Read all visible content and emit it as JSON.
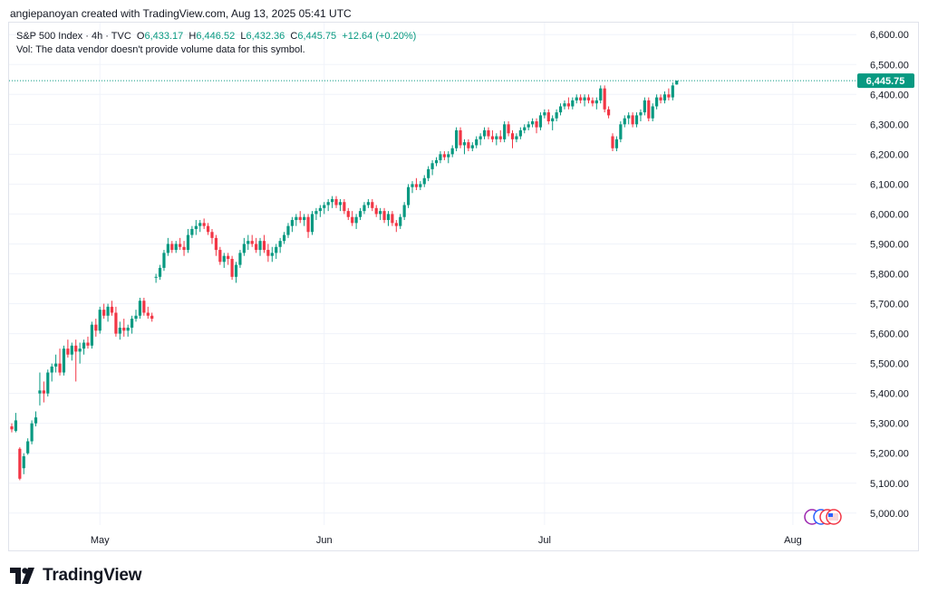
{
  "header": {
    "text": "angiepanoyan created with TradingView.com, Aug 13, 2025 05:41 UTC"
  },
  "legend": {
    "symbol": "S&P 500 Index · 4h · TVC",
    "o_label": "O",
    "o_value": "6,433.17",
    "h_label": "H",
    "h_value": "6,446.52",
    "l_label": "L",
    "l_value": "6,432.36",
    "c_label": "C",
    "c_value": "6,445.75",
    "change": "+12.64 (+0.20%)",
    "vol_note": "Vol: The data vendor doesn't provide volume data for this symbol."
  },
  "footer": {
    "brand": "TradingView"
  },
  "colors": {
    "up": "#089981",
    "down": "#f23645",
    "grid": "#f0f3fa",
    "text": "#131722",
    "price_label_bg": "#089981"
  },
  "chart_data": {
    "type": "candlestick",
    "title": "S&P 500 Index · 4h · TVC",
    "ylim": [
      4960,
      6640
    ],
    "y_ticks": [
      "6,600.00",
      "6,500.00",
      "6,400.00",
      "6,300.00",
      "6,200.00",
      "6,100.00",
      "6,000.00",
      "5,900.00",
      "5,800.00",
      "5,700.00",
      "5,600.00",
      "5,500.00",
      "5,400.00",
      "5,300.00",
      "5,200.00",
      "5,100.00",
      "5,000.00"
    ],
    "y_tick_values": [
      6600,
      6500,
      6400,
      6300,
      6200,
      6100,
      6000,
      5900,
      5800,
      5700,
      5600,
      5500,
      5400,
      5300,
      5200,
      5100,
      5000
    ],
    "x_ticks": [
      {
        "label": "May",
        "index": 22
      },
      {
        "label": "Jun",
        "index": 78
      },
      {
        "label": "Jul",
        "index": 133
      },
      {
        "label": "Aug",
        "index": 195
      }
    ],
    "last_price": {
      "value": 6445.75,
      "label": "6,445.75"
    },
    "candles": [
      [
        5290,
        5300,
        5270,
        5280
      ],
      [
        5275,
        5335,
        5270,
        5310
      ],
      [
        5215,
        5220,
        5110,
        5115
      ],
      [
        5150,
        5200,
        5130,
        5190
      ],
      [
        5200,
        5250,
        5195,
        5240
      ],
      [
        5240,
        5310,
        5230,
        5300
      ],
      [
        5300,
        5340,
        5290,
        5320
      ],
      [
        5400,
        5470,
        5360,
        5410
      ],
      [
        5410,
        5440,
        5370,
        5400
      ],
      [
        5400,
        5480,
        5390,
        5470
      ],
      [
        5470,
        5500,
        5440,
        5490
      ],
      [
        5490,
        5530,
        5470,
        5500
      ],
      [
        5500,
        5550,
        5460,
        5470
      ],
      [
        5470,
        5560,
        5460,
        5550
      ],
      [
        5550,
        5580,
        5520,
        5530
      ],
      [
        5530,
        5570,
        5510,
        5560
      ],
      [
        5560,
        5580,
        5440,
        5540
      ],
      [
        5540,
        5570,
        5500,
        5550
      ],
      [
        5550,
        5580,
        5530,
        5570
      ],
      [
        5570,
        5590,
        5550,
        5560
      ],
      [
        5560,
        5640,
        5550,
        5630
      ],
      [
        5630,
        5650,
        5590,
        5610
      ],
      [
        5610,
        5690,
        5600,
        5680
      ],
      [
        5680,
        5700,
        5650,
        5660
      ],
      [
        5660,
        5700,
        5640,
        5690
      ],
      [
        5690,
        5710,
        5660,
        5670
      ],
      [
        5670,
        5690,
        5590,
        5600
      ],
      [
        5600,
        5640,
        5580,
        5620
      ],
      [
        5620,
        5650,
        5590,
        5610
      ],
      [
        5610,
        5630,
        5590,
        5620
      ],
      [
        5620,
        5660,
        5600,
        5650
      ],
      [
        5650,
        5680,
        5640,
        5660
      ],
      [
        5660,
        5720,
        5650,
        5710
      ],
      [
        5710,
        5720,
        5660,
        5670
      ],
      [
        5670,
        5690,
        5650,
        5660
      ],
      [
        5660,
        5670,
        5640,
        5650
      ],
      [
        5790,
        5800,
        5770,
        5790
      ],
      [
        5790,
        5830,
        5780,
        5820
      ],
      [
        5820,
        5880,
        5810,
        5870
      ],
      [
        5870,
        5920,
        5860,
        5900
      ],
      [
        5900,
        5910,
        5870,
        5880
      ],
      [
        5880,
        5910,
        5870,
        5900
      ],
      [
        5900,
        5920,
        5880,
        5890
      ],
      [
        5890,
        5910,
        5860,
        5880
      ],
      [
        5880,
        5950,
        5870,
        5930
      ],
      [
        5930,
        5960,
        5920,
        5950
      ],
      [
        5950,
        5980,
        5930,
        5960
      ],
      [
        5960,
        5980,
        5940,
        5970
      ],
      [
        5970,
        5985,
        5950,
        5960
      ],
      [
        5960,
        5970,
        5930,
        5940
      ],
      [
        5940,
        5950,
        5900,
        5920
      ],
      [
        5920,
        5930,
        5860,
        5880
      ],
      [
        5880,
        5890,
        5830,
        5840
      ],
      [
        5840,
        5870,
        5820,
        5860
      ],
      [
        5860,
        5870,
        5830,
        5850
      ],
      [
        5850,
        5860,
        5780,
        5790
      ],
      [
        5790,
        5840,
        5770,
        5830
      ],
      [
        5830,
        5880,
        5820,
        5870
      ],
      [
        5870,
        5920,
        5860,
        5900
      ],
      [
        5900,
        5930,
        5880,
        5910
      ],
      [
        5910,
        5930,
        5890,
        5900
      ],
      [
        5900,
        5920,
        5870,
        5880
      ],
      [
        5880,
        5920,
        5860,
        5910
      ],
      [
        5910,
        5930,
        5870,
        5880
      ],
      [
        5880,
        5900,
        5840,
        5860
      ],
      [
        5860,
        5890,
        5840,
        5870
      ],
      [
        5870,
        5900,
        5850,
        5890
      ],
      [
        5890,
        5920,
        5870,
        5910
      ],
      [
        5910,
        5940,
        5900,
        5930
      ],
      [
        5930,
        5970,
        5920,
        5960
      ],
      [
        5960,
        5990,
        5940,
        5980
      ],
      [
        5980,
        6000,
        5960,
        5990
      ],
      [
        5990,
        6010,
        5970,
        5980
      ],
      [
        5980,
        6000,
        5960,
        5990
      ],
      [
        5990,
        6000,
        5920,
        5940
      ],
      [
        5940,
        6010,
        5930,
        6000
      ],
      [
        6000,
        6020,
        5980,
        6010
      ],
      [
        6010,
        6030,
        5990,
        6020
      ],
      [
        6020,
        6040,
        6000,
        6030
      ],
      [
        6030,
        6050,
        6010,
        6040
      ],
      [
        6040,
        6060,
        6020,
        6050
      ],
      [
        6050,
        6060,
        6020,
        6030
      ],
      [
        6030,
        6050,
        6010,
        6040
      ],
      [
        6040,
        6050,
        6000,
        6010
      ],
      [
        6010,
        6020,
        5980,
        5990
      ],
      [
        5990,
        6010,
        5960,
        5970
      ],
      [
        5970,
        6000,
        5950,
        5990
      ],
      [
        5990,
        6020,
        5980,
        6010
      ],
      [
        6010,
        6040,
        6000,
        6030
      ],
      [
        6030,
        6050,
        6020,
        6040
      ],
      [
        6040,
        6050,
        6010,
        6020
      ],
      [
        6020,
        6030,
        5990,
        6000
      ],
      [
        6000,
        6020,
        5980,
        6010
      ],
      [
        6010,
        6020,
        5970,
        5980
      ],
      [
        5980,
        6010,
        5960,
        6000
      ],
      [
        6000,
        6010,
        5960,
        5970
      ],
      [
        5970,
        5980,
        5940,
        5960
      ],
      [
        5960,
        6000,
        5950,
        5990
      ],
      [
        5990,
        6040,
        5980,
        6030
      ],
      [
        6030,
        6100,
        6020,
        6090
      ],
      [
        6090,
        6110,
        6070,
        6100
      ],
      [
        6100,
        6120,
        6080,
        6090
      ],
      [
        6090,
        6110,
        6080,
        6100
      ],
      [
        6100,
        6130,
        6090,
        6120
      ],
      [
        6120,
        6160,
        6110,
        6150
      ],
      [
        6150,
        6180,
        6130,
        6170
      ],
      [
        6170,
        6190,
        6160,
        6180
      ],
      [
        6180,
        6210,
        6170,
        6200
      ],
      [
        6200,
        6210,
        6180,
        6190
      ],
      [
        6190,
        6210,
        6170,
        6200
      ],
      [
        6200,
        6230,
        6190,
        6220
      ],
      [
        6220,
        6290,
        6210,
        6280
      ],
      [
        6280,
        6290,
        6220,
        6230
      ],
      [
        6230,
        6250,
        6200,
        6240
      ],
      [
        6240,
        6250,
        6210,
        6220
      ],
      [
        6220,
        6240,
        6210,
        6230
      ],
      [
        6230,
        6260,
        6220,
        6250
      ],
      [
        6250,
        6270,
        6230,
        6260
      ],
      [
        6260,
        6290,
        6250,
        6280
      ],
      [
        6280,
        6290,
        6250,
        6260
      ],
      [
        6260,
        6280,
        6240,
        6250
      ],
      [
        6250,
        6270,
        6230,
        6260
      ],
      [
        6260,
        6280,
        6240,
        6250
      ],
      [
        6250,
        6310,
        6240,
        6300
      ],
      [
        6300,
        6310,
        6260,
        6270
      ],
      [
        6270,
        6280,
        6220,
        6250
      ],
      [
        6250,
        6270,
        6240,
        6260
      ],
      [
        6260,
        6290,
        6250,
        6280
      ],
      [
        6280,
        6300,
        6270,
        6290
      ],
      [
        6290,
        6310,
        6280,
        6300
      ],
      [
        6300,
        6320,
        6290,
        6310
      ],
      [
        6310,
        6320,
        6270,
        6290
      ],
      [
        6290,
        6340,
        6280,
        6330
      ],
      [
        6330,
        6350,
        6320,
        6340
      ],
      [
        6340,
        6350,
        6300,
        6310
      ],
      [
        6310,
        6330,
        6280,
        6320
      ],
      [
        6320,
        6350,
        6310,
        6340
      ],
      [
        6340,
        6370,
        6330,
        6360
      ],
      [
        6360,
        6380,
        6350,
        6370
      ],
      [
        6370,
        6390,
        6350,
        6360
      ],
      [
        6360,
        6390,
        6350,
        6380
      ],
      [
        6380,
        6400,
        6370,
        6390
      ],
      [
        6390,
        6400,
        6370,
        6380
      ],
      [
        6380,
        6400,
        6360,
        6390
      ],
      [
        6390,
        6400,
        6370,
        6380
      ],
      [
        6380,
        6390,
        6360,
        6370
      ],
      [
        6370,
        6390,
        6350,
        6380
      ],
      [
        6380,
        6430,
        6370,
        6420
      ],
      [
        6420,
        6430,
        6340,
        6350
      ],
      [
        6350,
        6360,
        6320,
        6330
      ],
      [
        6260,
        6270,
        6210,
        6220
      ],
      [
        6220,
        6260,
        6210,
        6250
      ],
      [
        6250,
        6310,
        6240,
        6300
      ],
      [
        6300,
        6330,
        6290,
        6320
      ],
      [
        6320,
        6340,
        6300,
        6330
      ],
      [
        6330,
        6340,
        6290,
        6300
      ],
      [
        6300,
        6340,
        6290,
        6330
      ],
      [
        6330,
        6350,
        6310,
        6340
      ],
      [
        6340,
        6390,
        6330,
        6380
      ],
      [
        6380,
        6390,
        6310,
        6320
      ],
      [
        6320,
        6370,
        6310,
        6360
      ],
      [
        6360,
        6400,
        6350,
        6390
      ],
      [
        6390,
        6400,
        6370,
        6380
      ],
      [
        6380,
        6410,
        6370,
        6400
      ],
      [
        6400,
        6420,
        6380,
        6390
      ],
      [
        6390,
        6440,
        6380,
        6430
      ],
      [
        6433.17,
        6446.52,
        6432.36,
        6445.75
      ]
    ]
  }
}
